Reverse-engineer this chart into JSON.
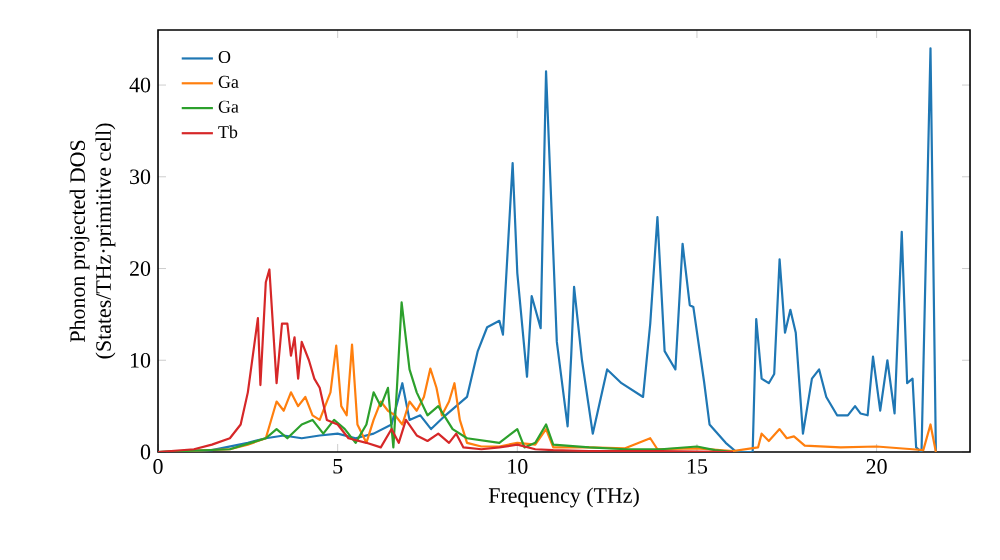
{
  "chart_data": {
    "type": "line",
    "xlabel": "Frequency (THz)",
    "ylabel": "Phonon projected DOS\n(States/THz·primitive cell)",
    "xlim": [
      0,
      22.6
    ],
    "ylim": [
      0,
      46
    ],
    "xticks": [
      0,
      5,
      10,
      15,
      20
    ],
    "yticks": [
      0,
      10,
      20,
      30,
      40
    ],
    "grid": false,
    "legend": "top left",
    "marker": "none",
    "line_style": "solid",
    "series": [
      {
        "name": "O",
        "color": "#1f77b4",
        "x": [
          0,
          1.5,
          2.5,
          3,
          3.5,
          4,
          4.5,
          5,
          5.5,
          6,
          6.5,
          6.8,
          7,
          7.3,
          7.6,
          8,
          8.3,
          8.6,
          8.9,
          9.16,
          9.5,
          9.6,
          9.87,
          10.0,
          10.27,
          10.4,
          10.65,
          10.8,
          11.1,
          11.4,
          11.5,
          11.58,
          11.8,
          12.1,
          12.5,
          12.9,
          13.5,
          13.7,
          13.9,
          14.1,
          14.4,
          14.6,
          14.8,
          14.9,
          15.2,
          15.35,
          15.8,
          16.1,
          16.55,
          16.65,
          16.8,
          17.0,
          17.15,
          17.3,
          17.45,
          17.6,
          17.75,
          17.95,
          18.2,
          18.4,
          18.6,
          18.9,
          19.2,
          19.4,
          19.55,
          19.75,
          19.9,
          20.1,
          20.3,
          20.5,
          20.7,
          20.85,
          21.0,
          21.1,
          21.25,
          21.5,
          21.65
        ],
        "values": [
          0,
          0.2,
          1,
          1.5,
          1.8,
          1.5,
          1.8,
          2,
          1.5,
          2,
          3,
          7.5,
          3.5,
          4,
          2.5,
          4,
          5,
          6,
          11,
          13.6,
          14.3,
          12.8,
          31.5,
          19.5,
          8.2,
          17,
          13.5,
          41.5,
          12,
          2.8,
          10.5,
          18,
          10,
          2,
          9,
          7.5,
          6,
          14,
          25.6,
          11,
          9,
          22.7,
          16,
          15.8,
          7.6,
          3,
          1,
          0,
          0,
          14.5,
          8,
          7.5,
          8.5,
          21,
          13,
          15.5,
          13,
          2,
          8,
          9,
          6,
          4,
          4,
          5,
          4.2,
          4,
          10.4,
          4.5,
          10,
          4.2,
          24,
          7.5,
          8,
          0.5,
          0,
          44,
          0
        ]
      },
      {
        "name": "Ga",
        "color": "#ff7f0e",
        "x": [
          0,
          2,
          2.5,
          3,
          3.3,
          3.5,
          3.7,
          3.9,
          4.1,
          4.3,
          4.5,
          4.8,
          4.96,
          5.1,
          5.25,
          5.4,
          5.55,
          5.8,
          6.0,
          6.2,
          6.4,
          6.6,
          6.8,
          7.0,
          7.2,
          7.4,
          7.58,
          7.75,
          7.9,
          8.1,
          8.25,
          8.4,
          8.6,
          9,
          9.5,
          10,
          10.5,
          10.8,
          11,
          12,
          13,
          13.7,
          13.9,
          15,
          16,
          16.7,
          16.8,
          17,
          17.3,
          17.5,
          17.7,
          18,
          19,
          20,
          21,
          21.3,
          21.5,
          21.65
        ],
        "values": [
          0,
          0.3,
          0.8,
          1.5,
          5.5,
          4.5,
          6.5,
          5,
          6,
          4,
          3.5,
          6.5,
          11.6,
          5,
          4,
          11.7,
          3,
          1,
          3.5,
          5.5,
          4.5,
          4,
          3,
          5.5,
          4.5,
          6,
          9.1,
          7,
          4,
          5.5,
          7.5,
          3.5,
          1,
          0.6,
          0.6,
          1,
          0.8,
          2.5,
          0.5,
          0.5,
          0.4,
          1.5,
          0.3,
          0.4,
          0.1,
          0.5,
          2,
          1.2,
          2.5,
          1.5,
          1.7,
          0.7,
          0.5,
          0.6,
          0.3,
          0.2,
          3,
          0
        ]
      },
      {
        "name": "Ga",
        "color": "#2ca02c",
        "x": [
          0,
          2,
          3,
          3.3,
          3.6,
          4,
          4.3,
          4.6,
          4.9,
          5.2,
          5.5,
          5.8,
          6.0,
          6.2,
          6.4,
          6.55,
          6.65,
          6.78,
          7.0,
          7.2,
          7.5,
          7.8,
          8.2,
          8.6,
          9.5,
          10,
          10.2,
          10.5,
          10.8,
          11,
          12,
          13,
          14,
          15,
          15.5,
          16
        ],
        "values": [
          0,
          0.3,
          1.5,
          2.5,
          1.5,
          3,
          3.5,
          2,
          3.5,
          2.5,
          1,
          3,
          6.5,
          5,
          7,
          0.5,
          7,
          16.3,
          9,
          6.5,
          4,
          5,
          2.5,
          1.5,
          1,
          2.5,
          0.5,
          1,
          3,
          0.8,
          0.5,
          0.3,
          0.3,
          0.6,
          0.2,
          0
        ]
      },
      {
        "name": "Tb",
        "color": "#d62728",
        "x": [
          0,
          1,
          1.5,
          2,
          2.3,
          2.5,
          2.78,
          2.85,
          3.0,
          3.1,
          3.3,
          3.45,
          3.6,
          3.7,
          3.8,
          3.9,
          4.0,
          4.2,
          4.35,
          4.5,
          4.7,
          5.0,
          5.3,
          5.8,
          6.2,
          6.5,
          6.7,
          6.9,
          7.2,
          7.5,
          7.8,
          8.1,
          8.3,
          8.5,
          9,
          9.5,
          10,
          10.5,
          11,
          12,
          14,
          16
        ],
        "values": [
          0,
          0.3,
          0.8,
          1.5,
          3,
          6.5,
          14.6,
          7.3,
          18.5,
          19.9,
          7.5,
          14,
          14,
          10.5,
          12.5,
          8,
          12,
          10,
          8,
          7,
          3.5,
          3,
          1.5,
          1,
          0.5,
          2.5,
          1,
          3.5,
          1.8,
          1.2,
          2,
          1,
          2,
          0.5,
          0.3,
          0.5,
          0.8,
          0.3,
          0.2,
          0.1,
          0.1,
          0
        ]
      }
    ]
  }
}
